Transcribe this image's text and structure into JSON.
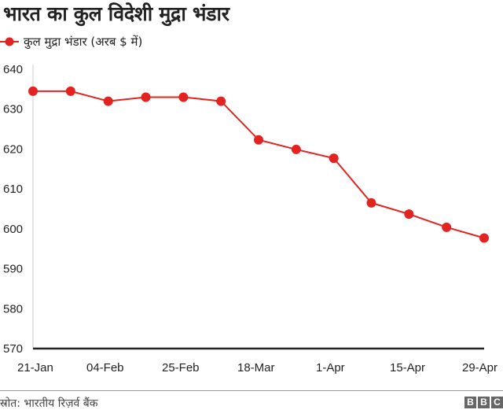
{
  "title": "भारत का कुल विदेशी मुद्रा भंडार",
  "legend": {
    "label": "कुल मुद्रा भंडार (अरब $ में)",
    "color": "#e3231f"
  },
  "source": "स्रोत: भारतीय रिज़र्व बैंक",
  "logo": [
    "B",
    "B",
    "C"
  ],
  "chart_data": {
    "type": "line",
    "title": "भारत का कुल विदेशी मुद्रा भंडार",
    "xlabel": "",
    "ylabel": "",
    "ylim": [
      570,
      640
    ],
    "yticks": [
      640,
      630,
      620,
      610,
      600,
      590,
      580,
      570
    ],
    "xtick_labels": [
      "21-Jan",
      "04-Feb",
      "25-Feb",
      "18-Mar",
      "1-Apr",
      "15-Apr",
      "29-Apr"
    ],
    "grid": false,
    "legend_position": "top-left",
    "series": [
      {
        "name": "कुल मुद्रा भंडार (अरब $ में)",
        "color": "#e3231f",
        "values": [
          634.5,
          634.5,
          632.0,
          633.0,
          633.0,
          632.0,
          622.3,
          619.9,
          617.7,
          606.5,
          603.7,
          600.4,
          597.7
        ]
      }
    ]
  }
}
